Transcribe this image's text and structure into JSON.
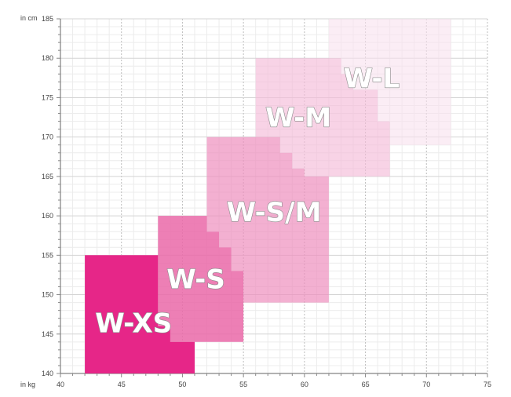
{
  "chart_data": {
    "type": "area",
    "title": "",
    "xlabel": "in kg",
    "ylabel": "in cm",
    "xlim": [
      40,
      75
    ],
    "ylim": [
      140,
      185
    ],
    "x_ticks": [
      40,
      45,
      50,
      55,
      60,
      65,
      70,
      75
    ],
    "y_ticks": [
      140,
      145,
      150,
      155,
      160,
      165,
      170,
      175,
      180,
      185
    ],
    "grid": true,
    "series": [
      {
        "name": "W-L",
        "color": "#f9e1ee",
        "opacity": 0.6,
        "label_at": [
          65.5,
          177.5
        ],
        "polygon": [
          [
            62,
            185
          ],
          [
            72,
            185
          ],
          [
            72,
            169
          ],
          [
            67,
            169
          ],
          [
            67,
            172
          ],
          [
            66,
            172
          ],
          [
            66,
            176
          ],
          [
            64,
            176
          ],
          [
            64,
            178
          ],
          [
            63,
            178
          ],
          [
            63,
            180
          ],
          [
            62,
            180
          ]
        ]
      },
      {
        "name": "W-M",
        "color": "#f5bcd8",
        "opacity": 0.65,
        "label_at": [
          59.5,
          172.5
        ],
        "polygon": [
          [
            56,
            180
          ],
          [
            63,
            180
          ],
          [
            63,
            178
          ],
          [
            64,
            178
          ],
          [
            64,
            176
          ],
          [
            66,
            176
          ],
          [
            66,
            172
          ],
          [
            67,
            172
          ],
          [
            67,
            165
          ],
          [
            60,
            165
          ],
          [
            60,
            166
          ],
          [
            59,
            166
          ],
          [
            59,
            168
          ],
          [
            58,
            168
          ],
          [
            58,
            170
          ],
          [
            56,
            170
          ]
        ]
      },
      {
        "name": "W-S/M",
        "color": "#ee8fbd",
        "opacity": 0.7,
        "label_at": [
          57.5,
          160.5
        ],
        "polygon": [
          [
            52,
            170
          ],
          [
            58,
            170
          ],
          [
            58,
            168
          ],
          [
            59,
            168
          ],
          [
            59,
            166
          ],
          [
            60,
            166
          ],
          [
            60,
            165
          ],
          [
            62,
            165
          ],
          [
            62,
            149
          ],
          [
            55,
            149
          ],
          [
            55,
            153
          ],
          [
            54,
            153
          ],
          [
            54,
            156
          ],
          [
            53,
            156
          ],
          [
            53,
            158
          ],
          [
            52,
            158
          ]
        ]
      },
      {
        "name": "W-S",
        "color": "#ea68a8",
        "opacity": 0.85,
        "label_at": [
          51.1,
          152
        ],
        "polygon": [
          [
            48,
            160
          ],
          [
            52,
            160
          ],
          [
            52,
            158
          ],
          [
            53,
            158
          ],
          [
            53,
            156
          ],
          [
            54,
            156
          ],
          [
            54,
            153
          ],
          [
            55,
            153
          ],
          [
            55,
            144
          ],
          [
            49,
            144
          ],
          [
            49,
            146
          ],
          [
            48,
            146
          ]
        ]
      },
      {
        "name": "W-XS",
        "color": "#e62688",
        "opacity": 1,
        "label_at": [
          46,
          146.4
        ],
        "polygon": [
          [
            42,
            155
          ],
          [
            48,
            155
          ],
          [
            48,
            146
          ],
          [
            49,
            146
          ],
          [
            49,
            144
          ],
          [
            51,
            144
          ],
          [
            51,
            140
          ],
          [
            42,
            140
          ]
        ]
      }
    ]
  }
}
